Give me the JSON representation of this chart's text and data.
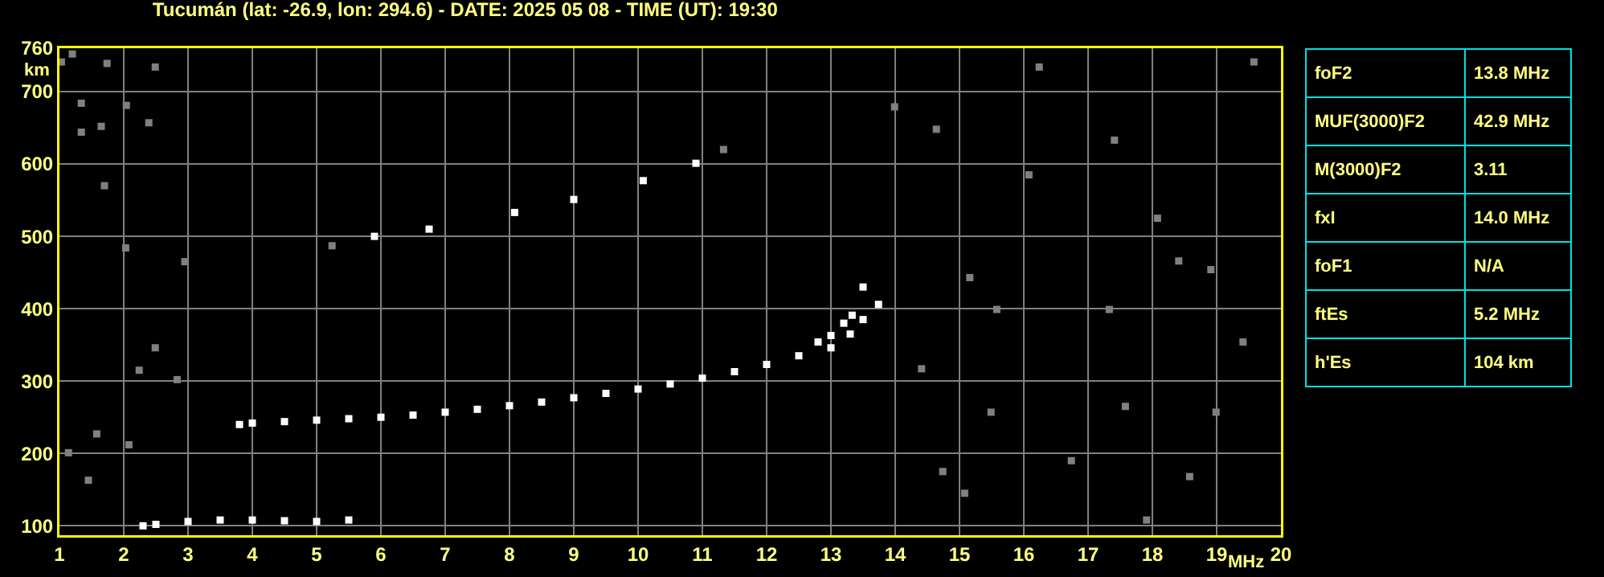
{
  "chart_data": [
    {
      "type": "scatter",
      "title": "Tucumán (lat: -26.9, lon: 294.6) - DATE: 2025 05 08 - TIME (UT): 19:30",
      "xlabel": "MHz",
      "ylabel": "km",
      "xlim": [
        1,
        20
      ],
      "xticks": [
        1,
        2,
        3,
        4,
        5,
        6,
        7,
        8,
        9,
        10,
        11,
        12,
        13,
        14,
        15,
        16,
        17,
        18,
        19,
        20
      ],
      "ylim": [
        87,
        760
      ],
      "yticks": [
        100,
        200,
        300,
        400,
        500,
        600,
        700,
        760
      ],
      "grid": true,
      "marker": "square",
      "series": [
        {
          "color": "#ffffff",
          "x": [
            3.8,
            4,
            4.5,
            5,
            5.5,
            6,
            6.5,
            7,
            7.5,
            8,
            8.5,
            9,
            9.5,
            10,
            10.5,
            11,
            11.5,
            12,
            12.5,
            13,
            13.3,
            13.5,
            13.74
          ],
          "values": [
            240,
            242,
            244,
            246,
            248,
            250,
            253,
            257,
            261,
            266,
            271,
            277,
            283,
            289,
            296,
            304,
            313,
            323,
            335,
            346,
            365,
            385,
            406
          ]
        },
        {
          "color": "#ffffff",
          "x": [
            12.8,
            13,
            13.2,
            13.33,
            13.5
          ],
          "values": [
            354,
            363,
            380,
            391,
            430
          ]
        },
        {
          "color": "#ffffff",
          "x": [
            5.9,
            6.75,
            8.08,
            9.0,
            10.08,
            10.9
          ],
          "values": [
            500,
            510,
            533,
            551,
            577,
            601
          ]
        },
        {
          "color": "#ffffff",
          "x": [
            2.3,
            2.5,
            3,
            3.5,
            4,
            4.5,
            5,
            5.5
          ],
          "values": [
            100,
            102,
            106,
            108,
            108,
            107,
            106,
            108
          ]
        },
        {
          "color": "#808080",
          "x": [
            1.03,
            1.2,
            1.34,
            1.65,
            1.34,
            1.74,
            2.04,
            2.39,
            2.49,
            1.7,
            2.03,
            2.95,
            5.24,
            11.33,
            1.14,
            1.45,
            2.49,
            2.24,
            1.58,
            2.83,
            2.08,
            13.99,
            14.64,
            17.41,
            16.08,
            18.08,
            18.41,
            15.16,
            15.58,
            17.33,
            18.91,
            14.41,
            19.41,
            15.49,
            17.58,
            18.99,
            14.74,
            16.74,
            18.58,
            15.08,
            17.91,
            19.58,
            16.24
          ],
          "values": [
            741,
            752,
            684,
            652,
            644,
            739,
            681,
            657,
            734,
            570,
            484,
            465,
            487,
            620,
            201,
            163,
            346,
            315,
            227,
            302,
            212,
            679,
            648,
            633,
            585,
            525,
            466,
            443,
            399,
            399,
            454,
            317,
            354,
            257,
            265,
            257,
            175,
            190,
            168,
            145,
            108,
            741,
            734
          ]
        }
      ]
    },
    {
      "type": "other",
      "categories": [
        "foF2",
        "MUF(3000)F2",
        "M(3000)F2",
        "fxI",
        "foF1",
        "ftEs",
        "h'Es"
      ],
      "value_labels": [
        "13.8 MHz",
        "42.9 MHz",
        "3.11",
        "14.0 MHz",
        "N/A",
        "5.2 MHz",
        "104 km"
      ]
    }
  ]
}
